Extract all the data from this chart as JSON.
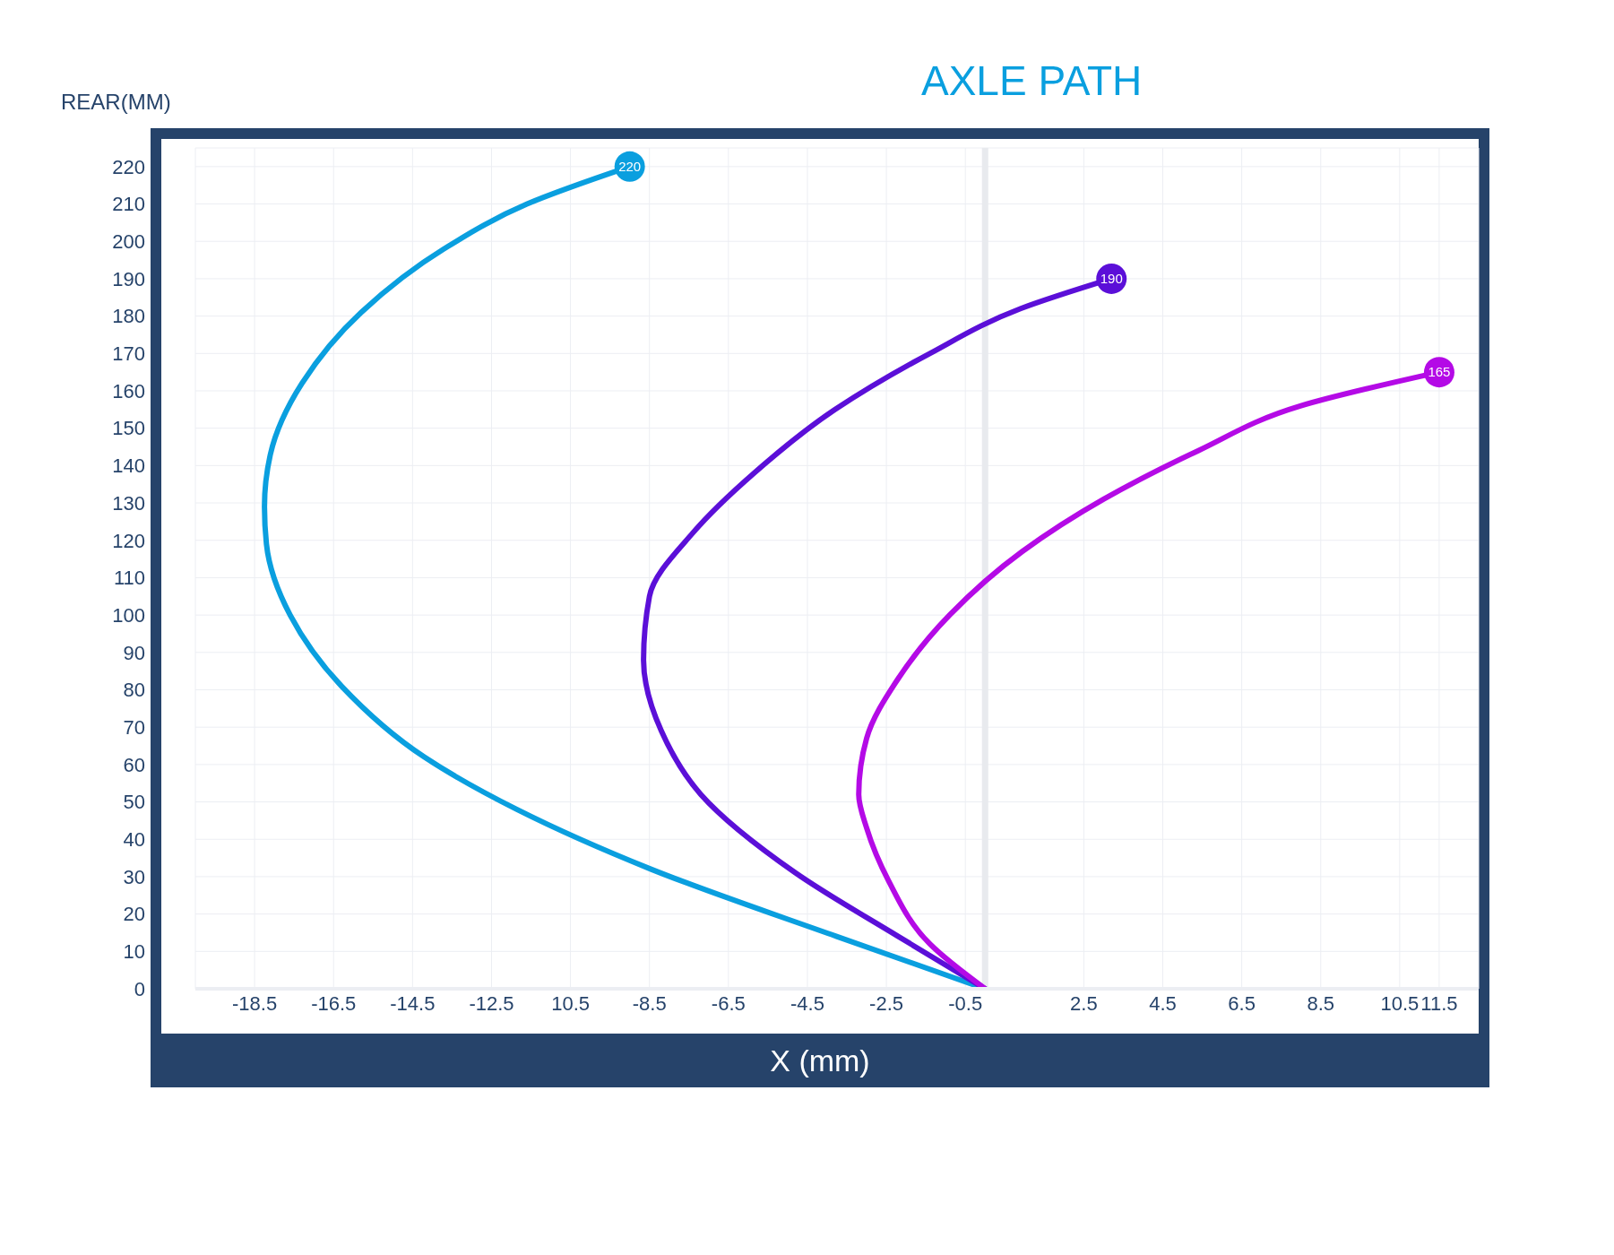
{
  "chart_data": {
    "type": "line",
    "title": "AXLE PATH",
    "ylabel": "REAR(MM)",
    "xlabel": "X (mm)",
    "xlim": [
      -20,
      12.5
    ],
    "ylim": [
      0,
      225
    ],
    "xticks": [
      -18.5,
      -16.5,
      -14.5,
      -12.5,
      {
        "value": -10.5,
        "label": "10.5"
      },
      -8.5,
      -6.5,
      -4.5,
      -2.5,
      -0.5,
      2.5,
      4.5,
      6.5,
      8.5,
      10.5,
      11.5
    ],
    "yticks": [
      0,
      10,
      20,
      30,
      40,
      50,
      60,
      70,
      80,
      90,
      100,
      110,
      120,
      130,
      140,
      150,
      160,
      170,
      180,
      190,
      200,
      210,
      220
    ],
    "grid": true,
    "legend": false,
    "marker": "none",
    "line_style": "solid",
    "ref_lines": [
      {
        "axis": "x",
        "value": 0,
        "color": "#e8eaee"
      }
    ],
    "series": [
      {
        "color": "#0a9fdf",
        "x": [
          0,
          -3.76,
          -8.46,
          -11.86,
          -14.2,
          -16.3,
          -17.6,
          -18.2,
          -18.25,
          -18.1,
          -17.3,
          -15.8,
          -13.7,
          -11.6,
          -9
        ],
        "values": [
          0,
          14,
          32,
          48,
          62,
          81,
          100,
          119,
          129,
          143,
          162,
          181,
          198,
          210,
          220
        ],
        "value_labels": [
          null,
          null,
          null,
          null,
          null,
          null,
          null,
          null,
          null,
          null,
          null,
          null,
          null,
          null,
          "220"
        ]
      },
      {
        "color": "#5b0fd8",
        "x": [
          0,
          -2.2,
          -4.8,
          -7.2,
          -8.2,
          -8.65,
          -8.5,
          -7.4,
          -5.85,
          -3.8,
          -1.4,
          0.9,
          3.2
        ],
        "values": [
          0,
          14,
          31,
          52,
          69,
          88,
          105,
          122,
          138,
          155,
          170,
          182,
          190
        ],
        "value_labels": [
          null,
          null,
          null,
          null,
          null,
          null,
          null,
          null,
          null,
          null,
          null,
          null,
          "190"
        ]
      },
      {
        "color": "#b40ae6",
        "x": [
          0,
          -1.4,
          -2.45,
          -3.0,
          -3.2,
          -3.0,
          -2.2,
          -0.9,
          0.94,
          3.0,
          5.4,
          8.0,
          11.5
        ],
        "values": [
          0,
          12,
          29,
          43,
          52,
          67,
          83,
          100,
          117,
          131,
          144,
          156,
          165
        ],
        "value_labels": [
          null,
          null,
          null,
          null,
          null,
          null,
          null,
          null,
          null,
          null,
          null,
          null,
          "165"
        ]
      }
    ]
  }
}
